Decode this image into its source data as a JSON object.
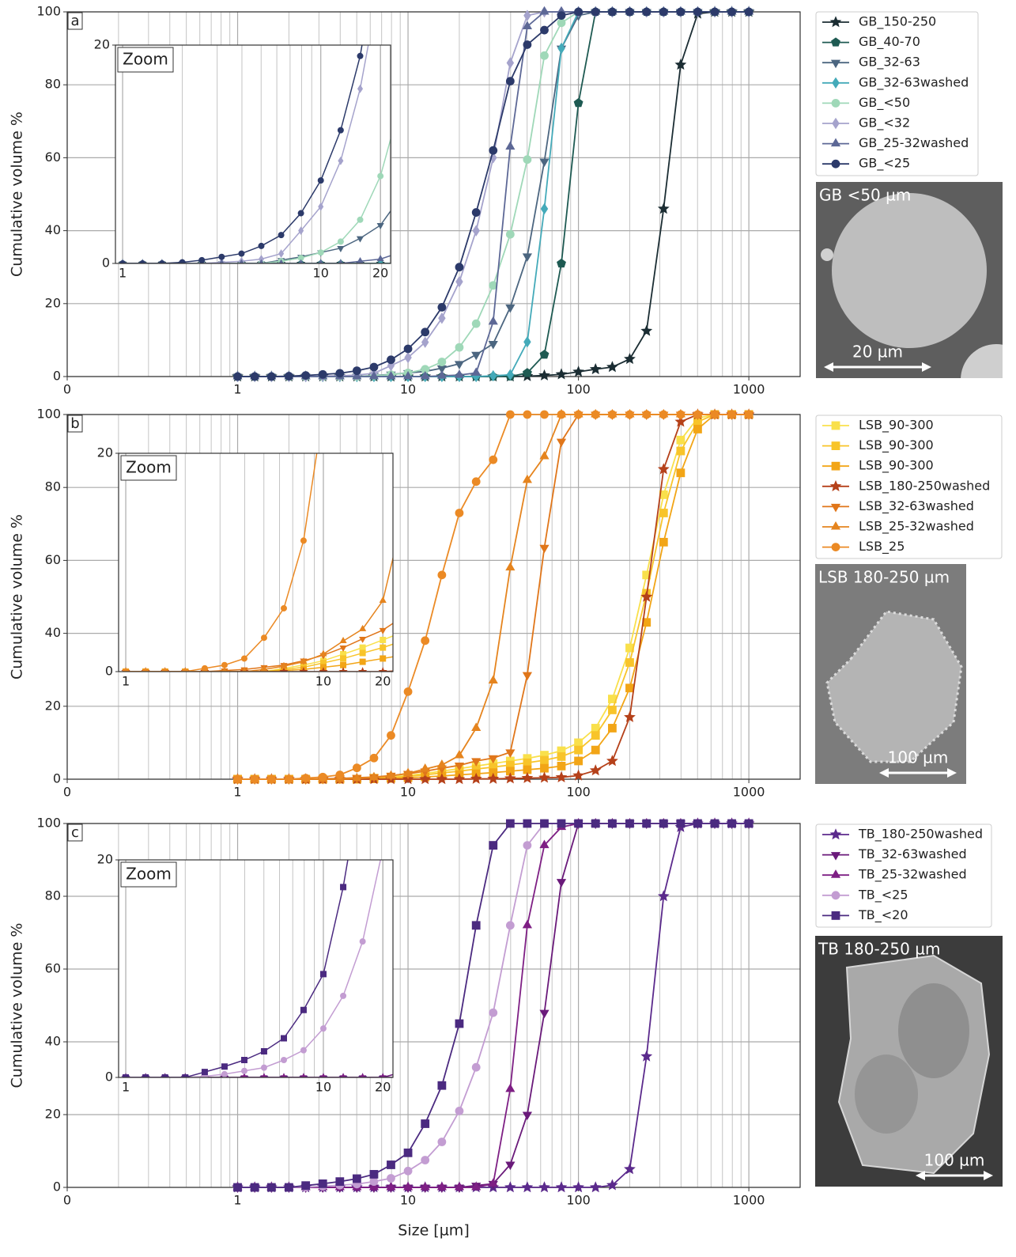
{
  "chart_data": [
    {
      "type": "line",
      "panel_label": "a",
      "y_label": "Cumulative volume %",
      "xscale": "log",
      "xlim": [
        0.1,
        2000
      ],
      "xticks": [
        {
          "value": 0.1,
          "label": "0"
        },
        1,
        10,
        100,
        1000
      ],
      "ylim": [
        0,
        100
      ],
      "yticks": [
        0,
        20,
        40,
        60,
        80,
        100
      ],
      "grid": true,
      "minor_grid": true,
      "legend": "outside-right",
      "x": [
        1,
        1.26,
        1.58,
        2,
        2.51,
        3.16,
        3.98,
        5.01,
        6.31,
        7.94,
        10,
        12.6,
        15.8,
        20,
        25.1,
        31.6,
        39.8,
        50.1,
        63.1,
        79.4,
        100,
        126,
        158,
        200,
        251,
        316,
        398,
        501,
        631,
        794,
        1000
      ],
      "series": [
        {
          "name": "GB_150-250",
          "color": "#1b2d33",
          "marker": "star",
          "values": [
            0,
            0,
            0,
            0,
            0,
            0,
            0,
            0,
            0,
            0,
            0,
            0,
            0,
            0,
            0,
            0,
            0,
            0.1,
            0.3,
            0.6,
            1.3,
            2,
            2.6,
            4.8,
            12.5,
            46,
            85.5,
            99.5,
            100,
            100,
            100
          ]
        },
        {
          "name": "GB_40-70",
          "color": "#1e5a52",
          "marker": "pentagon",
          "values": [
            0,
            0,
            0,
            0,
            0,
            0,
            0,
            0,
            0,
            0,
            0,
            0,
            0,
            0,
            0,
            0,
            0,
            1,
            6,
            31,
            75,
            100,
            100,
            100,
            100,
            100,
            100,
            100,
            100,
            100,
            100
          ]
        },
        {
          "name": "GB_32-63",
          "color": "#4c6680",
          "marker": "tri-down",
          "values": [
            0,
            0,
            0,
            0,
            0,
            0,
            0,
            0,
            0.3,
            0.6,
            1,
            1.4,
            2.3,
            3.5,
            6,
            9,
            19,
            33,
            59,
            90,
            99,
            100,
            100,
            100,
            100,
            100,
            100,
            100,
            100,
            100,
            100
          ]
        },
        {
          "name": "GB_32-63washed",
          "color": "#44aab9",
          "marker": "diamond",
          "values": [
            0,
            0,
            0,
            0,
            0,
            0,
            0,
            0,
            0,
            0,
            0,
            0,
            0,
            0,
            0,
            0.2,
            0.5,
            9.5,
            46,
            90,
            100,
            100,
            100,
            100,
            100,
            100,
            100,
            100,
            100,
            100,
            100
          ]
        },
        {
          "name": "GB_<50",
          "color": "#9fd8b8",
          "marker": "circle",
          "values": [
            0,
            0,
            0,
            0,
            0,
            0,
            0,
            0,
            0.2,
            0.5,
            1,
            2,
            4,
            8,
            14.5,
            25,
            39,
            59.5,
            88,
            97,
            100,
            100,
            100,
            100,
            100,
            100,
            100,
            100,
            100,
            100,
            100
          ]
        },
        {
          "name": "GB_<32",
          "color": "#a5a3cc",
          "marker": "diamond",
          "values": [
            0,
            0,
            0,
            0,
            0,
            0.1,
            0.2,
            0.4,
            0.9,
            3,
            5.2,
            9.4,
            16,
            26,
            40,
            60,
            86,
            99,
            100,
            100,
            100,
            100,
            100,
            100,
            100,
            100,
            100,
            100,
            100,
            100,
            100
          ]
        },
        {
          "name": "GB_25-32washed",
          "color": "#5d6896",
          "marker": "tri-up",
          "values": [
            0,
            0,
            0,
            0,
            0,
            0,
            0,
            0,
            0,
            0,
            0,
            0,
            0.2,
            0.4,
            1,
            15,
            63,
            96,
            100,
            100,
            100,
            100,
            100,
            100,
            100,
            100,
            100,
            100,
            100,
            100,
            100
          ]
        },
        {
          "name": "GB_<25",
          "color": "#2c3a6a",
          "marker": "circle",
          "values": [
            0,
            0,
            0,
            0.1,
            0.3,
            0.6,
            0.9,
            1.6,
            2.6,
            4.6,
            7.6,
            12.2,
            19,
            30,
            45,
            62,
            81,
            91,
            95,
            99,
            100,
            100,
            100,
            100,
            100,
            100,
            100,
            100,
            100,
            100,
            100
          ]
        }
      ],
      "inset": {
        "title": "Zoom",
        "xlim": [
          0.92,
          22.5
        ],
        "ylim": [
          0,
          20
        ],
        "xticks": [
          1,
          10,
          20
        ],
        "yticks": [
          0,
          20
        ]
      },
      "image": {
        "caption": "GB <50 µm",
        "scale_label": "20 µm"
      }
    },
    {
      "type": "line",
      "panel_label": "b",
      "y_label": "Cumulative volume %",
      "xscale": "log",
      "xlim": [
        0.1,
        2000
      ],
      "xticks": [
        {
          "value": 0.1,
          "label": "0"
        },
        1,
        10,
        100,
        1000
      ],
      "ylim": [
        0,
        100
      ],
      "yticks": [
        0,
        20,
        40,
        60,
        80,
        100
      ],
      "grid": true,
      "minor_grid": true,
      "legend": "outside-right",
      "x": [
        1,
        1.26,
        1.58,
        2,
        2.51,
        3.16,
        3.98,
        5.01,
        6.31,
        7.94,
        10,
        12.6,
        15.8,
        20,
        25.1,
        31.6,
        39.8,
        50.1,
        63.1,
        79.4,
        100,
        126,
        158,
        200,
        251,
        316,
        398,
        501,
        631,
        794,
        1000
      ],
      "series": [
        {
          "name": "LSB_90-300",
          "color": "#f9e04b",
          "marker": "square",
          "values": [
            0,
            0,
            0,
            0,
            0,
            0,
            0,
            0,
            0.3,
            0.6,
            1,
            1.6,
            2.2,
            2.9,
            3.6,
            4.3,
            5,
            5.7,
            6.6,
            7.8,
            10,
            14,
            22,
            36,
            56,
            78,
            93,
            99,
            100,
            100,
            100
          ]
        },
        {
          "name": "LSB_90-300",
          "color": "#f8c42a",
          "marker": "square",
          "values": [
            0,
            0,
            0,
            0,
            0,
            0,
            0,
            0,
            0.2,
            0.4,
            0.8,
            1.2,
            1.7,
            2.2,
            2.8,
            3.3,
            3.9,
            4.5,
            5.2,
            6.2,
            8,
            12,
            19,
            32,
            51,
            73,
            90,
            98,
            100,
            100,
            100
          ]
        },
        {
          "name": "LSB_90-300",
          "color": "#f2a516",
          "marker": "square",
          "values": [
            0,
            0,
            0,
            0,
            0,
            0,
            0,
            0,
            0.1,
            0.2,
            0.4,
            0.6,
            0.9,
            1.2,
            1.5,
            1.8,
            2.2,
            2.6,
            3,
            3.6,
            5,
            8,
            14,
            25,
            43,
            65,
            84,
            96,
            100,
            100,
            100
          ]
        },
        {
          "name": "LSB_180-250washed",
          "color": "#b5411a",
          "marker": "star",
          "values": [
            0,
            0,
            0,
            0,
            0,
            0,
            0,
            0,
            0,
            0,
            0,
            0,
            0,
            0,
            0.1,
            0.1,
            0.2,
            0.3,
            0.4,
            0.5,
            1,
            2.4,
            5,
            17,
            50,
            85,
            98,
            100,
            100,
            100,
            100
          ]
        },
        {
          "name": "LSB_32-63washed",
          "color": "#e0761a",
          "marker": "tri-down",
          "values": [
            0,
            0,
            0,
            0,
            0,
            0.1,
            0.2,
            0.4,
            0.6,
            1,
            1.5,
            2.2,
            3,
            3.8,
            5,
            5.8,
            7.4,
            28.6,
            63.5,
            92.6,
            100,
            100,
            100,
            100,
            100,
            100,
            100,
            100,
            100,
            100,
            100
          ]
        },
        {
          "name": "LSB_25-32washed",
          "color": "#e5841e",
          "marker": "tri-up",
          "values": [
            0,
            0,
            0,
            0,
            0,
            0,
            0,
            0.2,
            0.5,
            0.9,
            1.6,
            2.8,
            3.9,
            6.5,
            14,
            27,
            58,
            82,
            88.5,
            100,
            100,
            100,
            100,
            100,
            100,
            100,
            100,
            100,
            100,
            100,
            100
          ]
        },
        {
          "name": "LSB_25",
          "color": "#eb8a25",
          "marker": "circle",
          "values": [
            0,
            0,
            0,
            0,
            0.3,
            0.6,
            1.2,
            3.1,
            5.8,
            12,
            24,
            38,
            56,
            73,
            81.6,
            87.6,
            100,
            100,
            100,
            100,
            100,
            100,
            100,
            100,
            100,
            100,
            100,
            100,
            100,
            100,
            100
          ]
        }
      ],
      "inset": {
        "title": "Zoom",
        "xlim": [
          0.92,
          22.5
        ],
        "ylim": [
          0,
          20
        ],
        "xticks": [
          1,
          10,
          20
        ],
        "yticks": [
          0,
          20
        ]
      },
      "image": {
        "caption": "LSB 180-250 µm",
        "scale_label": "100 µm"
      }
    },
    {
      "type": "line",
      "panel_label": "c",
      "y_label": "Cumulative volume %",
      "x_label": "Size [µm]",
      "xscale": "log",
      "xlim": [
        0.1,
        2000
      ],
      "xticks": [
        {
          "value": 0.1,
          "label": "0"
        },
        1,
        10,
        100,
        1000
      ],
      "ylim": [
        0,
        100
      ],
      "yticks": [
        0,
        20,
        40,
        60,
        80,
        100
      ],
      "grid": true,
      "minor_grid": true,
      "legend": "outside-right",
      "x": [
        1,
        1.26,
        1.58,
        2,
        2.51,
        3.16,
        3.98,
        5.01,
        6.31,
        7.94,
        10,
        12.6,
        15.8,
        20,
        25.1,
        31.6,
        39.8,
        50.1,
        63.1,
        79.4,
        100,
        126,
        158,
        200,
        251,
        316,
        398,
        501,
        631,
        794,
        1000
      ],
      "series": [
        {
          "name": "TB_180-250washed",
          "color": "#5b2a8c",
          "marker": "star",
          "values": [
            0,
            0,
            0,
            0,
            0,
            0,
            0,
            0,
            0,
            0,
            0,
            0,
            0,
            0,
            0,
            0,
            0,
            0,
            0,
            0,
            0,
            0,
            0.6,
            5,
            36,
            80,
            99,
            100,
            100,
            100,
            100
          ]
        },
        {
          "name": "TB_32-63washed",
          "color": "#6a1a7a",
          "marker": "tri-down",
          "values": [
            0,
            0,
            0,
            0,
            0,
            0,
            0,
            0,
            0,
            0,
            0,
            0,
            0,
            0,
            0.5,
            1,
            6.3,
            20,
            48,
            84,
            100,
            100,
            100,
            100,
            100,
            100,
            100,
            100,
            100,
            100,
            100
          ]
        },
        {
          "name": "TB_25-32washed",
          "color": "#7e1f84",
          "marker": "tri-up",
          "values": [
            0,
            0,
            0,
            0,
            0,
            0,
            0,
            0,
            0,
            0,
            0,
            0,
            0,
            0,
            0,
            1,
            27,
            72,
            94,
            99,
            100,
            100,
            100,
            100,
            100,
            100,
            100,
            100,
            100,
            100,
            100
          ]
        },
        {
          "name": "TB_<25",
          "color": "#c39dd2",
          "marker": "circle",
          "values": [
            0,
            0,
            0,
            0,
            0.1,
            0.3,
            0.6,
            0.9,
            1.6,
            2.5,
            4.5,
            7.5,
            12.5,
            21,
            33,
            48,
            72,
            94,
            100,
            100,
            100,
            100,
            100,
            100,
            100,
            100,
            100,
            100,
            100,
            100,
            100
          ]
        },
        {
          "name": "TB_<20",
          "color": "#4b2a80",
          "marker": "square",
          "values": [
            0,
            0,
            0,
            0,
            0.5,
            1,
            1.6,
            2.4,
            3.6,
            6.2,
            9.5,
            17.5,
            28,
            45,
            72,
            94,
            100,
            100,
            100,
            100,
            100,
            100,
            100,
            100,
            100,
            100,
            100,
            100,
            100,
            100,
            100
          ]
        }
      ],
      "inset": {
        "title": "Zoom",
        "xlim": [
          0.92,
          22.5
        ],
        "ylim": [
          0,
          20
        ],
        "xticks": [
          1,
          10,
          20
        ],
        "yticks": [
          0,
          20
        ]
      },
      "image": {
        "caption": "TB 180-250 µm",
        "scale_label": "100 µm"
      }
    }
  ]
}
